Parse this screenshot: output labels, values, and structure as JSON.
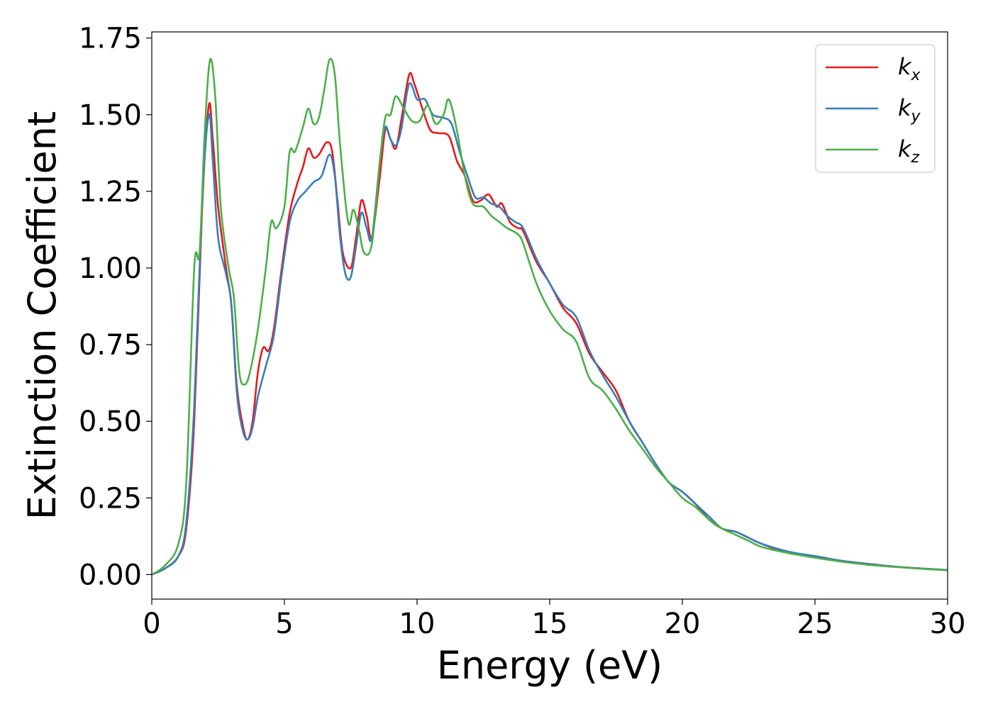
{
  "chart_data": {
    "type": "line",
    "title": "",
    "xlabel": "Energy (eV)",
    "ylabel": "Extinction Coefficient",
    "xlim": [
      0,
      30
    ],
    "ylim": [
      -0.08,
      1.77
    ],
    "xticks": [
      "0",
      "5",
      "10",
      "15",
      "20",
      "25",
      "30"
    ],
    "yticks": [
      "0.00",
      "0.25",
      "0.50",
      "0.75",
      "1.00",
      "1.25",
      "1.50",
      "1.75"
    ],
    "grid": false,
    "legend_position": "top-right",
    "series": [
      {
        "name": "k",
        "subscript": "x",
        "color": "#e41a1c",
        "points": [
          [
            0,
            0
          ],
          [
            0.5,
            0.02
          ],
          [
            1.0,
            0.06
          ],
          [
            1.3,
            0.15
          ],
          [
            1.6,
            0.5
          ],
          [
            1.9,
            1.2
          ],
          [
            2.15,
            1.53
          ],
          [
            2.3,
            1.42
          ],
          [
            2.5,
            1.2
          ],
          [
            2.8,
            1.0
          ],
          [
            3.0,
            0.88
          ],
          [
            3.2,
            0.62
          ],
          [
            3.4,
            0.5
          ],
          [
            3.6,
            0.44
          ],
          [
            3.8,
            0.5
          ],
          [
            4.0,
            0.66
          ],
          [
            4.2,
            0.74
          ],
          [
            4.4,
            0.73
          ],
          [
            4.6,
            0.8
          ],
          [
            4.9,
            1.0
          ],
          [
            5.2,
            1.18
          ],
          [
            5.5,
            1.28
          ],
          [
            5.7,
            1.33
          ],
          [
            5.9,
            1.39
          ],
          [
            6.1,
            1.36
          ],
          [
            6.3,
            1.37
          ],
          [
            6.6,
            1.41
          ],
          [
            6.8,
            1.38
          ],
          [
            7.0,
            1.22
          ],
          [
            7.2,
            1.05
          ],
          [
            7.5,
            1.0
          ],
          [
            7.7,
            1.1
          ],
          [
            7.9,
            1.22
          ],
          [
            8.1,
            1.17
          ],
          [
            8.3,
            1.1
          ],
          [
            8.6,
            1.3
          ],
          [
            8.8,
            1.45
          ],
          [
            9.0,
            1.42
          ],
          [
            9.2,
            1.39
          ],
          [
            9.4,
            1.48
          ],
          [
            9.7,
            1.63
          ],
          [
            9.9,
            1.6
          ],
          [
            10.2,
            1.52
          ],
          [
            10.5,
            1.45
          ],
          [
            10.8,
            1.44
          ],
          [
            11.2,
            1.43
          ],
          [
            11.5,
            1.35
          ],
          [
            11.8,
            1.3
          ],
          [
            12.1,
            1.22
          ],
          [
            12.4,
            1.22
          ],
          [
            12.7,
            1.24
          ],
          [
            13.0,
            1.2
          ],
          [
            13.2,
            1.21
          ],
          [
            13.5,
            1.15
          ],
          [
            13.8,
            1.13
          ],
          [
            14.0,
            1.12
          ],
          [
            14.5,
            1.02
          ],
          [
            15.0,
            0.95
          ],
          [
            15.5,
            0.87
          ],
          [
            16.0,
            0.82
          ],
          [
            16.5,
            0.72
          ],
          [
            17.0,
            0.66
          ],
          [
            17.5,
            0.6
          ],
          [
            18.0,
            0.5
          ],
          [
            18.5,
            0.43
          ],
          [
            19.0,
            0.36
          ],
          [
            19.5,
            0.3
          ],
          [
            20.0,
            0.27
          ],
          [
            20.5,
            0.23
          ],
          [
            21.0,
            0.18
          ],
          [
            21.5,
            0.15
          ],
          [
            22.0,
            0.14
          ],
          [
            22.5,
            0.12
          ],
          [
            23.0,
            0.1
          ],
          [
            24.0,
            0.07
          ],
          [
            25.0,
            0.06
          ],
          [
            26.0,
            0.045
          ],
          [
            27.0,
            0.035
          ],
          [
            28.0,
            0.026
          ],
          [
            29.0,
            0.02
          ],
          [
            30.0,
            0.015
          ]
        ]
      },
      {
        "name": "k",
        "subscript": "y",
        "color": "#377eb8",
        "points": [
          [
            0,
            0
          ],
          [
            0.5,
            0.02
          ],
          [
            1.0,
            0.06
          ],
          [
            1.3,
            0.17
          ],
          [
            1.6,
            0.55
          ],
          [
            1.9,
            1.22
          ],
          [
            2.15,
            1.5
          ],
          [
            2.3,
            1.35
          ],
          [
            2.5,
            1.1
          ],
          [
            2.8,
            0.98
          ],
          [
            3.0,
            0.88
          ],
          [
            3.2,
            0.6
          ],
          [
            3.4,
            0.48
          ],
          [
            3.6,
            0.44
          ],
          [
            3.8,
            0.48
          ],
          [
            4.0,
            0.58
          ],
          [
            4.3,
            0.68
          ],
          [
            4.6,
            0.78
          ],
          [
            4.9,
            0.98
          ],
          [
            5.2,
            1.15
          ],
          [
            5.5,
            1.22
          ],
          [
            5.8,
            1.25
          ],
          [
            6.1,
            1.28
          ],
          [
            6.4,
            1.3
          ],
          [
            6.7,
            1.37
          ],
          [
            6.9,
            1.3
          ],
          [
            7.1,
            1.1
          ],
          [
            7.3,
            0.98
          ],
          [
            7.5,
            0.97
          ],
          [
            7.7,
            1.07
          ],
          [
            7.9,
            1.18
          ],
          [
            8.1,
            1.13
          ],
          [
            8.3,
            1.1
          ],
          [
            8.6,
            1.35
          ],
          [
            8.8,
            1.46
          ],
          [
            9.0,
            1.42
          ],
          [
            9.2,
            1.4
          ],
          [
            9.4,
            1.45
          ],
          [
            9.7,
            1.6
          ],
          [
            10.0,
            1.55
          ],
          [
            10.3,
            1.55
          ],
          [
            10.6,
            1.5
          ],
          [
            11.0,
            1.49
          ],
          [
            11.3,
            1.47
          ],
          [
            11.6,
            1.38
          ],
          [
            11.9,
            1.3
          ],
          [
            12.2,
            1.23
          ],
          [
            12.5,
            1.23
          ],
          [
            12.8,
            1.21
          ],
          [
            13.1,
            1.2
          ],
          [
            13.4,
            1.17
          ],
          [
            13.7,
            1.15
          ],
          [
            14.0,
            1.13
          ],
          [
            14.5,
            1.03
          ],
          [
            15.0,
            0.95
          ],
          [
            15.5,
            0.88
          ],
          [
            16.0,
            0.84
          ],
          [
            16.5,
            0.73
          ],
          [
            17.0,
            0.65
          ],
          [
            17.5,
            0.58
          ],
          [
            18.0,
            0.5
          ],
          [
            18.5,
            0.43
          ],
          [
            19.0,
            0.36
          ],
          [
            19.5,
            0.3
          ],
          [
            20.0,
            0.27
          ],
          [
            20.5,
            0.23
          ],
          [
            21.0,
            0.19
          ],
          [
            21.5,
            0.15
          ],
          [
            22.0,
            0.14
          ],
          [
            22.5,
            0.12
          ],
          [
            23.0,
            0.1
          ],
          [
            24.0,
            0.075
          ],
          [
            25.0,
            0.06
          ],
          [
            26.0,
            0.045
          ],
          [
            27.0,
            0.035
          ],
          [
            28.0,
            0.026
          ],
          [
            29.0,
            0.02
          ],
          [
            30.0,
            0.015
          ]
        ]
      },
      {
        "name": "k",
        "subscript": "z",
        "color": "#4daf4a",
        "points": [
          [
            0,
            0
          ],
          [
            0.5,
            0.03
          ],
          [
            1.0,
            0.1
          ],
          [
            1.3,
            0.3
          ],
          [
            1.6,
            1.0
          ],
          [
            1.8,
            1.05
          ],
          [
            2.0,
            1.45
          ],
          [
            2.2,
            1.68
          ],
          [
            2.4,
            1.55
          ],
          [
            2.6,
            1.2
          ],
          [
            2.9,
            1.0
          ],
          [
            3.1,
            0.9
          ],
          [
            3.3,
            0.66
          ],
          [
            3.5,
            0.62
          ],
          [
            3.7,
            0.66
          ],
          [
            4.0,
            0.8
          ],
          [
            4.3,
            1.0
          ],
          [
            4.5,
            1.15
          ],
          [
            4.7,
            1.13
          ],
          [
            5.0,
            1.2
          ],
          [
            5.2,
            1.38
          ],
          [
            5.4,
            1.38
          ],
          [
            5.7,
            1.46
          ],
          [
            5.9,
            1.52
          ],
          [
            6.1,
            1.47
          ],
          [
            6.3,
            1.49
          ],
          [
            6.5,
            1.58
          ],
          [
            6.7,
            1.68
          ],
          [
            6.9,
            1.63
          ],
          [
            7.1,
            1.4
          ],
          [
            7.4,
            1.15
          ],
          [
            7.6,
            1.19
          ],
          [
            7.8,
            1.13
          ],
          [
            8.0,
            1.05
          ],
          [
            8.3,
            1.08
          ],
          [
            8.6,
            1.35
          ],
          [
            8.8,
            1.49
          ],
          [
            9.0,
            1.5
          ],
          [
            9.2,
            1.56
          ],
          [
            9.5,
            1.52
          ],
          [
            9.8,
            1.48
          ],
          [
            10.1,
            1.48
          ],
          [
            10.4,
            1.53
          ],
          [
            10.7,
            1.47
          ],
          [
            11.0,
            1.5
          ],
          [
            11.2,
            1.55
          ],
          [
            11.5,
            1.45
          ],
          [
            11.8,
            1.3
          ],
          [
            12.1,
            1.21
          ],
          [
            12.5,
            1.2
          ],
          [
            12.8,
            1.17
          ],
          [
            13.1,
            1.15
          ],
          [
            13.4,
            1.13
          ],
          [
            13.8,
            1.11
          ],
          [
            14.0,
            1.08
          ],
          [
            14.5,
            0.95
          ],
          [
            15.0,
            0.86
          ],
          [
            15.5,
            0.8
          ],
          [
            16.0,
            0.76
          ],
          [
            16.5,
            0.64
          ],
          [
            17.0,
            0.6
          ],
          [
            17.5,
            0.54
          ],
          [
            18.0,
            0.47
          ],
          [
            18.5,
            0.41
          ],
          [
            19.0,
            0.35
          ],
          [
            19.5,
            0.3
          ],
          [
            20.0,
            0.25
          ],
          [
            20.5,
            0.22
          ],
          [
            21.0,
            0.18
          ],
          [
            21.5,
            0.15
          ],
          [
            22.0,
            0.13
          ],
          [
            22.5,
            0.11
          ],
          [
            23.0,
            0.09
          ],
          [
            24.0,
            0.07
          ],
          [
            25.0,
            0.055
          ],
          [
            26.0,
            0.042
          ],
          [
            27.0,
            0.032
          ],
          [
            28.0,
            0.025
          ],
          [
            29.0,
            0.019
          ],
          [
            30.0,
            0.014
          ]
        ]
      }
    ]
  }
}
